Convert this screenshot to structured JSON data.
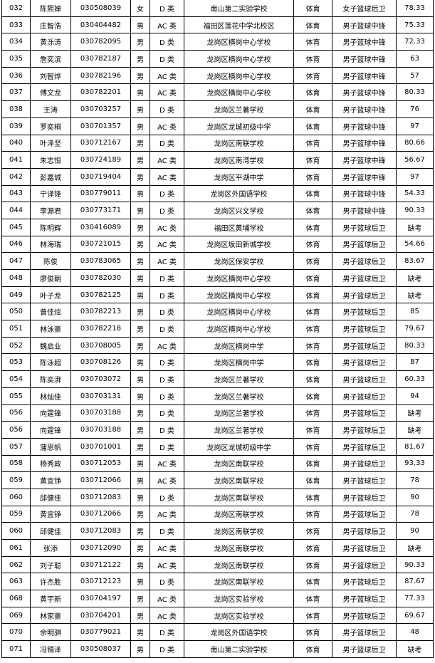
{
  "table": {
    "rows": [
      [
        "032",
        "陈熙婵",
        "030508039",
        "女",
        "D 类",
        "南山第二实验学校",
        "体育",
        "女子篮球后卫",
        "78.33"
      ],
      [
        "033",
        "庄智浩",
        "030404482",
        "男",
        "AC 类",
        "福田区莲花中学北校区",
        "体育",
        "男子篮球中锋",
        "75.33"
      ],
      [
        "034",
        "黄泺涛",
        "030782095",
        "男",
        "D 类",
        "龙岗区横岗中心学校",
        "体育",
        "男子篮球中锋",
        "72.33"
      ],
      [
        "035",
        "詹奕滨",
        "030782187",
        "男",
        "D 类",
        "龙岗区横岗中心学校",
        "体育",
        "男子篮球中锋",
        "63"
      ],
      [
        "036",
        "刘智烨",
        "030782196",
        "男",
        "AC 类",
        "龙岗区横岗中心学校",
        "体育",
        "男子篮球中锋",
        "57"
      ],
      [
        "037",
        "傅文龙",
        "030782201",
        "男",
        "AC 类",
        "龙岗区横岗中心学校",
        "体育",
        "男子篮球中锋",
        "80.33"
      ],
      [
        "038",
        "王涛",
        "030703257",
        "男",
        "D 类",
        "龙岗区兰著学校",
        "体育",
        "男子篮球中锋",
        "76"
      ],
      [
        "039",
        "罗奕桐",
        "030701357",
        "男",
        "AC 类",
        "龙岗区龙城初级中学",
        "体育",
        "男子篮球中锋",
        "97"
      ],
      [
        "040",
        "叶泽坚",
        "030712167",
        "男",
        "D 类",
        "龙岗区南联学校",
        "体育",
        "男子篮球中锋",
        "80.66"
      ],
      [
        "041",
        "朱志恒",
        "030724189",
        "男",
        "AC 类",
        "龙岗区南湾学校",
        "体育",
        "男子篮球中锋",
        "56.67"
      ],
      [
        "042",
        "彭嘉城",
        "030719404",
        "男",
        "AC 类",
        "龙岗区平湖中学",
        "体育",
        "男子篮球中锋",
        "97"
      ],
      [
        "043",
        "宁译锋",
        "030779011",
        "男",
        "D 类",
        "龙岗区外国语学校",
        "体育",
        "男子篮球中锋",
        "54.33"
      ],
      [
        "044",
        "李源君",
        "030773171",
        "男",
        "D 类",
        "龙岗区兴文学校",
        "体育",
        "男子篮球中锋",
        "90.33"
      ],
      [
        "045",
        "陈明辉",
        "030416089",
        "男",
        "AC 类",
        "福田区黄埔学校",
        "体育",
        "男子篮球后卫",
        "缺考"
      ],
      [
        "046",
        "林海瑞",
        "030721015",
        "男",
        "AC 类",
        "龙岗区坂田新城学校",
        "体育",
        "男子篮球后卫",
        "54.66"
      ],
      [
        "047",
        "陈俊",
        "030783065",
        "男",
        "AC 类",
        "龙岗区保安学校",
        "体育",
        "男子篮球后卫",
        "83.67"
      ],
      [
        "048",
        "廖俊朝",
        "030782030",
        "男",
        "D 类",
        "龙岗区横岗中心学校",
        "体育",
        "男子篮球后卫",
        "缺考"
      ],
      [
        "049",
        "叶子龙",
        "030782125",
        "男",
        "D 类",
        "龙岗区横岗中心学校",
        "体育",
        "男子篮球后卫",
        "缺考"
      ],
      [
        "050",
        "曾佳炫",
        "030782213",
        "男",
        "D 类",
        "龙岗区横岗中心学校",
        "体育",
        "男子篮球后卫",
        "85"
      ],
      [
        "051",
        "林泳豪",
        "030782218",
        "男",
        "D 类",
        "龙岗区横岗中心学校",
        "体育",
        "男子篮球后卫",
        "79.67"
      ],
      [
        "052",
        "魏启业",
        "030708005",
        "男",
        "AC 类",
        "龙岗区横岗中学",
        "体育",
        "男子篮球后卫",
        "80.33"
      ],
      [
        "053",
        "陈泳超",
        "030708126",
        "男",
        "D 类",
        "龙岗区横岗中学",
        "体育",
        "男子篮球后卫",
        "87"
      ],
      [
        "054",
        "陈奕湃",
        "030703072",
        "男",
        "D 类",
        "龙岗区兰著学校",
        "体育",
        "男子篮球后卫",
        "60.33"
      ],
      [
        "055",
        "林灿佳",
        "030703131",
        "男",
        "D 类",
        "龙岗区兰著学校",
        "体育",
        "男子篮球后卫",
        "94"
      ],
      [
        "056",
        "向霆锋",
        "030703188",
        "男",
        "D 类",
        "龙岗区兰著学校",
        "体育",
        "男子篮球后卫",
        "缺考"
      ],
      [
        "056",
        "向霆锋",
        "030703188",
        "男",
        "D 类",
        "龙岗区兰著学校",
        "体育",
        "男子篮球后卫",
        "缺考"
      ],
      [
        "057",
        "蒲思帆",
        "030701001",
        "男",
        "D 类",
        "龙岗区龙城初级中学",
        "体育",
        "男子篮球后卫",
        "81.67"
      ],
      [
        "058",
        "杨秀政",
        "030712053",
        "男",
        "AC 类",
        "龙岗区南联学校",
        "体育",
        "男子篮球后卫",
        "93.33"
      ],
      [
        "059",
        "黄宜铮",
        "030712066",
        "男",
        "AC 类",
        "龙岗区南联学校",
        "体育",
        "男子篮球后卫",
        "78"
      ],
      [
        "060",
        "邱健佳",
        "030712083",
        "男",
        "D 类",
        "龙岗区南联学校",
        "体育",
        "男子篮球后卫",
        "90"
      ],
      [
        "059",
        "黄宜铮",
        "030712066",
        "男",
        "AC 类",
        "龙岗区南联学校",
        "体育",
        "男子篮球后卫",
        "78"
      ],
      [
        "060",
        "邱健佳",
        "030712083",
        "男",
        "D 类",
        "龙岗区南联学校",
        "体育",
        "男子篮球后卫",
        "90"
      ],
      [
        "061",
        "张添",
        "030712090",
        "男",
        "AC 类",
        "龙岗区南联学校",
        "体育",
        "男子篮球后卫",
        "缺考"
      ],
      [
        "062",
        "刘子聪",
        "030712122",
        "男",
        "AC 类",
        "龙岗区南联学校",
        "体育",
        "男子篮球后卫",
        "90.33"
      ],
      [
        "063",
        "许杰胜",
        "030712123",
        "男",
        "D 类",
        "龙岗区南联学校",
        "体育",
        "男子篮球后卫",
        "87.67"
      ],
      [
        "068",
        "黄宇新",
        "030704197",
        "男",
        "AC 类",
        "龙岗区实验学校",
        "体育",
        "男子篮球后卫",
        "77.33"
      ],
      [
        "069",
        "林家豪",
        "030704201",
        "男",
        "AC 类",
        "龙岗区实验学校",
        "体育",
        "男子篮球后卫",
        "69.67"
      ],
      [
        "070",
        "余明骐",
        "030779021",
        "男",
        "D 类",
        "龙岗区外国语学校",
        "体育",
        "男子篮球后卫",
        "48"
      ],
      [
        "071",
        "冯锡泽",
        "030508037",
        "男",
        "D 类",
        "南山第二实验学校",
        "体育",
        "男子篮球后卫",
        "缺考"
      ]
    ]
  }
}
